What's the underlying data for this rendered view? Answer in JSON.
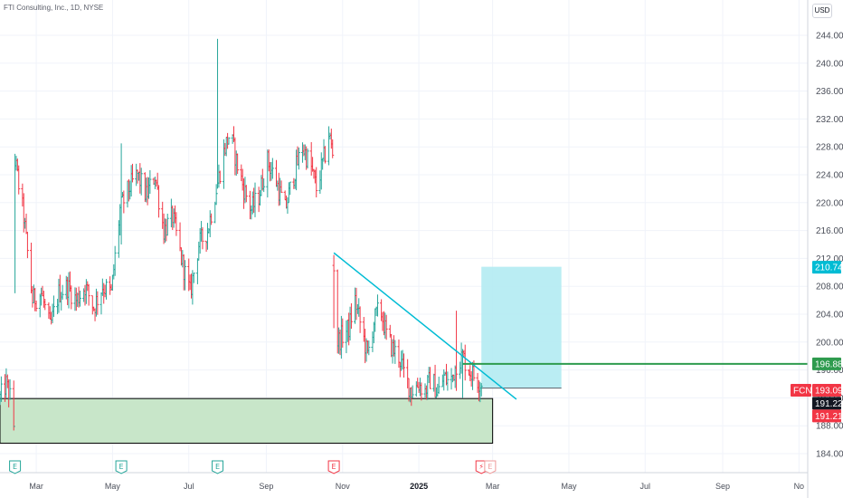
{
  "header": {
    "symbol_title": "FTI Consulting, Inc., 1D, NYSE"
  },
  "currency": "USD",
  "chart_data": {
    "type": "candlestick",
    "symbol": "FCN",
    "ylim": [
      182,
      246
    ],
    "y_ticks": [
      184,
      188,
      192,
      196,
      200,
      204,
      208,
      212,
      216,
      220,
      224,
      228,
      232,
      236,
      240,
      244
    ],
    "y_tick_labels": [
      "184.00",
      "188.00",
      "192.00",
      "196.00",
      "200.00",
      "204.00",
      "208.00",
      "212.00",
      "216.00",
      "220.00",
      "224.00",
      "228.00",
      "232.00",
      "236.00",
      "240.00",
      "244.00"
    ],
    "x_range": [
      "2024-02-01",
      "2025-11-08"
    ],
    "x_ticks": [
      {
        "label": "Mar",
        "date": "2024-03-01"
      },
      {
        "label": "May",
        "date": "2024-05-01"
      },
      {
        "label": "Jul",
        "date": "2024-07-01"
      },
      {
        "label": "Sep",
        "date": "2024-09-01"
      },
      {
        "label": "Nov",
        "date": "2024-11-01"
      },
      {
        "label": "2025",
        "date": "2025-01-01",
        "bold": true
      },
      {
        "label": "Mar",
        "date": "2025-03-01"
      },
      {
        "label": "May",
        "date": "2025-05-01"
      },
      {
        "label": "Jul",
        "date": "2025-07-01"
      },
      {
        "label": "Sep",
        "date": "2025-09-01"
      },
      {
        "label": "No",
        "date": "2025-11-01"
      }
    ],
    "price_segments": [
      {
        "start": "2024-02-01",
        "end": "2024-10-11",
        "path": [
          [
            "2024-02-01",
            192
          ],
          [
            "2024-02-06",
            194
          ],
          [
            "2024-02-10",
            191.5
          ],
          [
            "2024-02-12",
            188
          ],
          [
            "2024-02-13",
            226
          ],
          [
            "2024-02-20",
            218
          ],
          [
            "2024-02-27",
            206
          ],
          [
            "2024-03-05",
            207
          ],
          [
            "2024-03-12",
            202
          ],
          [
            "2024-03-19",
            207
          ],
          [
            "2024-03-26",
            208
          ],
          [
            "2024-04-02",
            206
          ],
          [
            "2024-04-09",
            208
          ],
          [
            "2024-04-16",
            205
          ],
          [
            "2024-04-23",
            208
          ],
          [
            "2024-04-30",
            207
          ],
          [
            "2024-05-07",
            219
          ],
          [
            "2024-05-14",
            222
          ],
          [
            "2024-05-21",
            224
          ],
          [
            "2024-05-28",
            221
          ],
          [
            "2024-06-04",
            224
          ],
          [
            "2024-06-11",
            216
          ],
          [
            "2024-06-18",
            218
          ],
          [
            "2024-06-25",
            212
          ],
          [
            "2024-07-02",
            207
          ],
          [
            "2024-07-09",
            214
          ],
          [
            "2024-07-16",
            216
          ],
          [
            "2024-07-23",
            222
          ],
          [
            "2024-07-30",
            228
          ],
          [
            "2024-08-03",
            230
          ],
          [
            "2024-08-08",
            226
          ],
          [
            "2024-08-14",
            222
          ],
          [
            "2024-08-20",
            219
          ],
          [
            "2024-08-26",
            221
          ],
          [
            "2024-09-02",
            226
          ],
          [
            "2024-09-09",
            223
          ],
          [
            "2024-09-16",
            219
          ],
          [
            "2024-09-23",
            224
          ],
          [
            "2024-09-30",
            228
          ],
          [
            "2024-10-07",
            225
          ],
          [
            "2024-10-11",
            222
          ],
          [
            "2024-10-18",
            227
          ],
          [
            "2024-10-21",
            230
          ],
          [
            "2024-10-24",
            227
          ]
        ]
      },
      {
        "start": "2024-10-25",
        "end": "2025-02-22",
        "path": [
          [
            "2024-10-25",
            211
          ],
          [
            "2024-10-28",
            200
          ],
          [
            "2024-11-01",
            201
          ],
          [
            "2024-11-06",
            202
          ],
          [
            "2024-11-11",
            206
          ],
          [
            "2024-11-16",
            202
          ],
          [
            "2024-11-21",
            198
          ],
          [
            "2024-11-26",
            203
          ],
          [
            "2024-12-01",
            205
          ],
          [
            "2024-12-06",
            201
          ],
          [
            "2024-12-11",
            199
          ],
          [
            "2024-12-16",
            198
          ],
          [
            "2024-12-21",
            195
          ],
          [
            "2024-12-26",
            193
          ],
          [
            "2025-01-01",
            194
          ],
          [
            "2025-01-06",
            193
          ],
          [
            "2025-01-11",
            195
          ],
          [
            "2025-01-16",
            192.5
          ],
          [
            "2025-01-21",
            195
          ],
          [
            "2025-01-26",
            194
          ],
          [
            "2025-01-31",
            197
          ],
          [
            "2025-02-05",
            198
          ],
          [
            "2025-02-10",
            196
          ],
          [
            "2025-02-15",
            195
          ],
          [
            "2025-02-20",
            194
          ]
        ]
      }
    ],
    "spikes": [
      {
        "date": "2024-02-13",
        "high": 227,
        "low": 207
      },
      {
        "date": "2024-05-08",
        "high": 228.5,
        "low": 214
      },
      {
        "date": "2024-07-24",
        "high": 243.5,
        "low": 222
      },
      {
        "date": "2024-10-25",
        "high": 212.5,
        "low": 202
      },
      {
        "date": "2025-01-31",
        "high": 204.5,
        "low": 193
      },
      {
        "date": "2025-02-05",
        "high": 199,
        "low": 192
      }
    ],
    "annotations": {
      "trendline": {
        "from": [
          "2024-10-25",
          212.8
        ],
        "to": [
          "2025-03-20",
          191.8
        ],
        "color": "#00bcd4"
      },
      "support_zone": {
        "x_from": "2024-02-01",
        "x_to": "2025-03-01",
        "y_from": 185.5,
        "y_to": 191.9,
        "fill": "#c8e6c9",
        "stroke": "#000000"
      },
      "target_box": {
        "x_from": "2025-02-20",
        "x_to": "2025-04-25",
        "y_from": 193.4,
        "y_to": 210.8,
        "fill": "#b2ebf2"
      },
      "horizontal_line": {
        "x_from": "2025-02-05",
        "y": 196.88,
        "color": "#2e9b4e"
      }
    },
    "price_labels": [
      {
        "text": "210.74",
        "value": 210.74,
        "color": "#00bcd4"
      },
      {
        "text": "196.88",
        "value": 196.88,
        "color": "#2e9b4e"
      },
      {
        "text": "193.09",
        "value": 193.09,
        "color": "#f23645",
        "symbol": "FCN"
      },
      {
        "text": "191.22",
        "value": 191.22,
        "color": "#131722"
      },
      {
        "text": "191.21",
        "value": 191.21,
        "color": "#f23645"
      }
    ],
    "event_markers": [
      {
        "date": "2024-02-13",
        "icon": "earnings-icon",
        "text": "E",
        "color": "#26a69a"
      },
      {
        "date": "2024-05-08",
        "icon": "earnings-icon",
        "text": "E",
        "color": "#26a69a"
      },
      {
        "date": "2024-07-24",
        "icon": "earnings-icon",
        "text": "E",
        "color": "#26a69a"
      },
      {
        "date": "2024-10-25",
        "icon": "earnings-icon",
        "text": "E",
        "color": "#f23645"
      },
      {
        "date": "2025-02-20",
        "icon": "lightning-icon",
        "text": "⚡",
        "color": "#f23645"
      },
      {
        "date": "2025-02-27",
        "icon": "earnings-icon",
        "text": "E",
        "color": "#ef9a9a"
      }
    ],
    "up_color": "#26a69a",
    "down_color": "#f23645"
  }
}
